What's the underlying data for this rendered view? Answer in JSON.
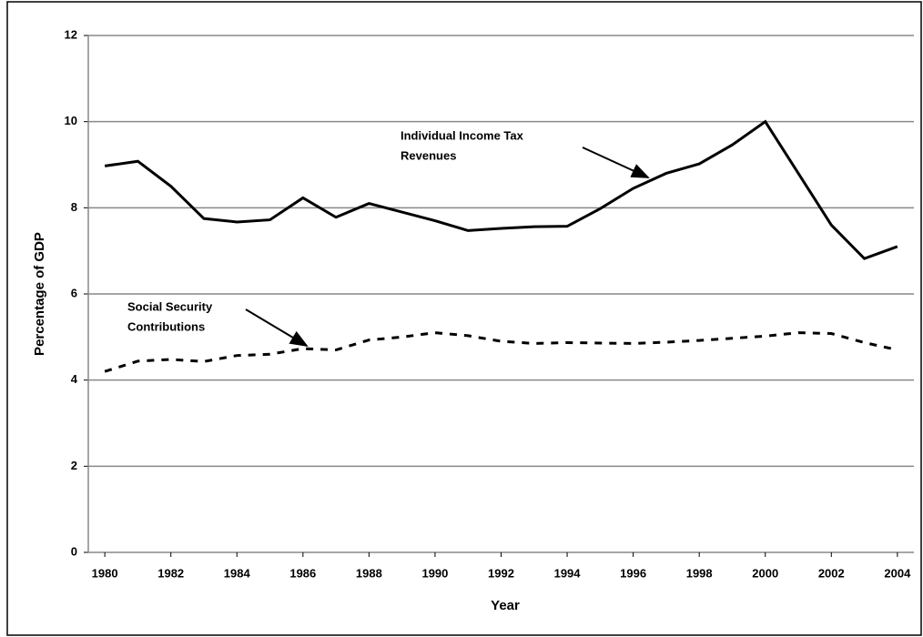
{
  "chart_data": {
    "type": "line",
    "x_label": "Year",
    "y_label": "Percentage of GDP",
    "x": [
      1980,
      1981,
      1982,
      1983,
      1984,
      1985,
      1986,
      1987,
      1988,
      1989,
      1990,
      1991,
      1992,
      1993,
      1994,
      1995,
      1996,
      1997,
      1998,
      1999,
      2000,
      2001,
      2002,
      2003,
      2004
    ],
    "series": [
      {
        "color": "#000000",
        "style": "solid",
        "values": [
          8.97,
          9.08,
          8.5,
          7.75,
          7.67,
          7.72,
          8.23,
          7.78,
          8.1,
          7.9,
          7.7,
          7.47,
          7.52,
          7.56,
          7.57,
          7.98,
          8.45,
          8.8,
          9.02,
          9.46,
          10.0,
          8.8,
          7.6,
          6.82,
          7.1
        ]
      },
      {
        "color": "#000000",
        "style": "dashed",
        "values": [
          4.2,
          4.44,
          4.48,
          4.43,
          4.57,
          4.6,
          4.73,
          4.7,
          4.93,
          5.0,
          5.1,
          5.03,
          4.9,
          4.85,
          4.87,
          4.86,
          4.85,
          4.88,
          4.92,
          4.97,
          5.02,
          5.1,
          5.08,
          4.87,
          4.7
        ]
      }
    ],
    "annotations": [
      {
        "lines": [
          "Individual Income Tax",
          "Revenues"
        ]
      },
      {
        "lines": [
          "Social Security",
          "Contributions"
        ]
      }
    ],
    "xlim": [
      1979.5,
      2004.5
    ],
    "xticks": [
      1980,
      1982,
      1984,
      1986,
      1988,
      1990,
      1992,
      1994,
      1996,
      1998,
      2000,
      2002,
      2004
    ],
    "ylim": [
      0,
      12
    ],
    "yticks": [
      0,
      2,
      4,
      6,
      8,
      10,
      12
    ],
    "grid": true
  }
}
